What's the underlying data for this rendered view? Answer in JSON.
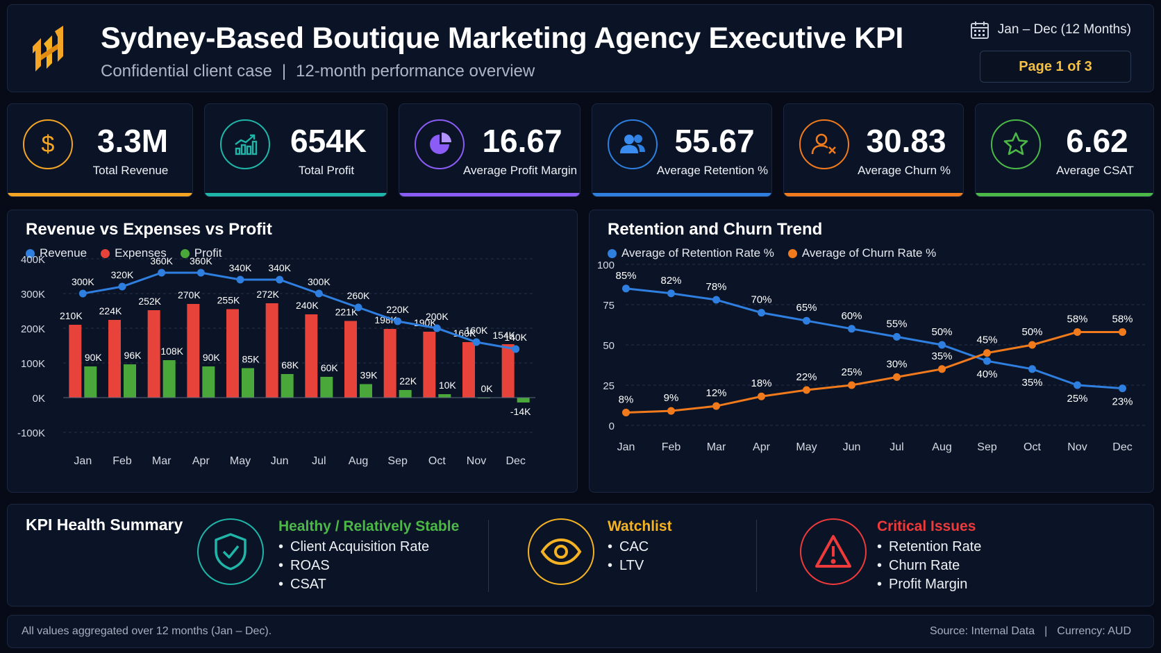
{
  "header": {
    "title": "Sydney-Based Boutique Marketing Agency Executive KPI",
    "subtitle_left": "Confidential client case",
    "subtitle_sep": "|",
    "subtitle_right": "12-month performance overview",
    "date_range": "Jan – Dec (12 Months)",
    "page": "Page 1 of 3",
    "icons": {
      "logo": "brand-logo-icon",
      "calendar": "calendar-icon"
    }
  },
  "kpis": [
    {
      "value": "3.3M",
      "label": "Total Revenue",
      "color": "#f5a524",
      "icon": "dollar-icon"
    },
    {
      "value": "654K",
      "label": "Total Profit",
      "color": "#1fb5a8",
      "icon": "growth-chart-icon"
    },
    {
      "value": "16.67",
      "label": "Average Profit Margin %",
      "color": "#8b5cf6",
      "icon": "pie-chart-icon"
    },
    {
      "value": "55.67",
      "label": "Average Retention %",
      "color": "#2f7fe0",
      "icon": "users-icon"
    },
    {
      "value": "30.83",
      "label": "Average Churn %",
      "color": "#f07a1c",
      "icon": "user-remove-icon"
    },
    {
      "value": "6.62",
      "label": "Average CSAT",
      "color": "#4cb848",
      "icon": "star-icon"
    }
  ],
  "chart_data": [
    {
      "type": "bar",
      "title": "Revenue vs Expenses vs Profit",
      "categories": [
        "Jan",
        "Feb",
        "Mar",
        "Apr",
        "May",
        "Jun",
        "Jul",
        "Aug",
        "Sep",
        "Oct",
        "Nov",
        "Dec"
      ],
      "ylim": [
        -100,
        400
      ],
      "yticks": [
        -100,
        0,
        100,
        200,
        300,
        400
      ],
      "ytick_labels": [
        "-100K",
        "0K",
        "100K",
        "200K",
        "300K",
        "400K"
      ],
      "grid": true,
      "legend_position": "top-left",
      "series": [
        {
          "name": "Revenue",
          "kind": "line",
          "color": "#2f7fe0",
          "values": [
            300,
            320,
            360,
            360,
            340,
            340,
            300,
            260,
            220,
            200,
            160,
            140
          ],
          "labels": [
            "300K",
            "320K",
            "360K",
            "360K",
            "340K",
            "340K",
            "300K",
            "260K",
            "220K",
            "200K",
            "160K",
            "140K"
          ]
        },
        {
          "name": "Expenses",
          "kind": "bar",
          "color": "#e8433a",
          "values": [
            210,
            224,
            252,
            270,
            255,
            272,
            240,
            221,
            198,
            190,
            160,
            154
          ],
          "labels": [
            "210K",
            "224K",
            "252K",
            "270K",
            "255K",
            "272K",
            "240K",
            "221K",
            "198K",
            "190K",
            "160K",
            "154K"
          ]
        },
        {
          "name": "Profit",
          "kind": "bar",
          "color": "#4aa83a",
          "values": [
            90,
            96,
            108,
            90,
            85,
            68,
            60,
            39,
            22,
            10,
            0,
            -14
          ],
          "labels": [
            "90K",
            "96K",
            "108K",
            "90K",
            "85K",
            "68K",
            "60K",
            "39K",
            "22K",
            "10K",
            "0K",
            "-14K"
          ]
        }
      ]
    },
    {
      "type": "line",
      "title": "Retention and Churn Trend",
      "categories": [
        "Jan",
        "Feb",
        "Mar",
        "Apr",
        "May",
        "Jun",
        "Jul",
        "Aug",
        "Sep",
        "Oct",
        "Nov",
        "Dec"
      ],
      "ylim": [
        0,
        100
      ],
      "yticks": [
        0,
        25,
        50,
        75,
        100
      ],
      "grid": true,
      "legend_position": "top-left",
      "series": [
        {
          "name": "Average of Retention Rate %",
          "color": "#2f7fe0",
          "values": [
            85,
            82,
            78,
            70,
            65,
            60,
            55,
            50,
            40,
            35,
            25,
            23
          ],
          "labels": [
            "85%",
            "82%",
            "78%",
            "70%",
            "65%",
            "60%",
            "55%",
            "50%",
            "40%",
            "35%",
            "25%",
            "23%"
          ]
        },
        {
          "name": "Average of Churn Rate %",
          "color": "#f07a1c",
          "values": [
            8,
            9,
            12,
            18,
            22,
            25,
            30,
            35,
            45,
            50,
            58,
            58
          ],
          "labels": [
            "8%",
            "9%",
            "12%",
            "18%",
            "22%",
            "25%",
            "30%",
            "35%",
            "45%",
            "50%",
            "58%",
            "58%"
          ]
        }
      ]
    }
  ],
  "health": {
    "title": "KPI Health Summary",
    "groups": [
      {
        "title": "Healthy / Relatively Stable",
        "color": "#4cb848",
        "ring": "#1fb5a8",
        "icon": "shield-check-icon",
        "items": [
          "Client Acquisition Rate",
          "ROAS",
          "CSAT"
        ]
      },
      {
        "title": "Watchlist",
        "color": "#f5b324",
        "ring": "#f5b324",
        "icon": "eye-icon",
        "items": [
          "CAC",
          "LTV"
        ]
      },
      {
        "title": "Critical Issues",
        "color": "#ee3a3a",
        "ring": "#ee3a3a",
        "icon": "warning-icon",
        "items": [
          "Retention Rate",
          "Churn Rate",
          "Profit Margin"
        ]
      }
    ]
  },
  "footer": {
    "left": "All values aggregated over 12 months (Jan – Dec).",
    "source": "Source: Internal Data",
    "sep": "|",
    "currency": "Currency: AUD"
  }
}
